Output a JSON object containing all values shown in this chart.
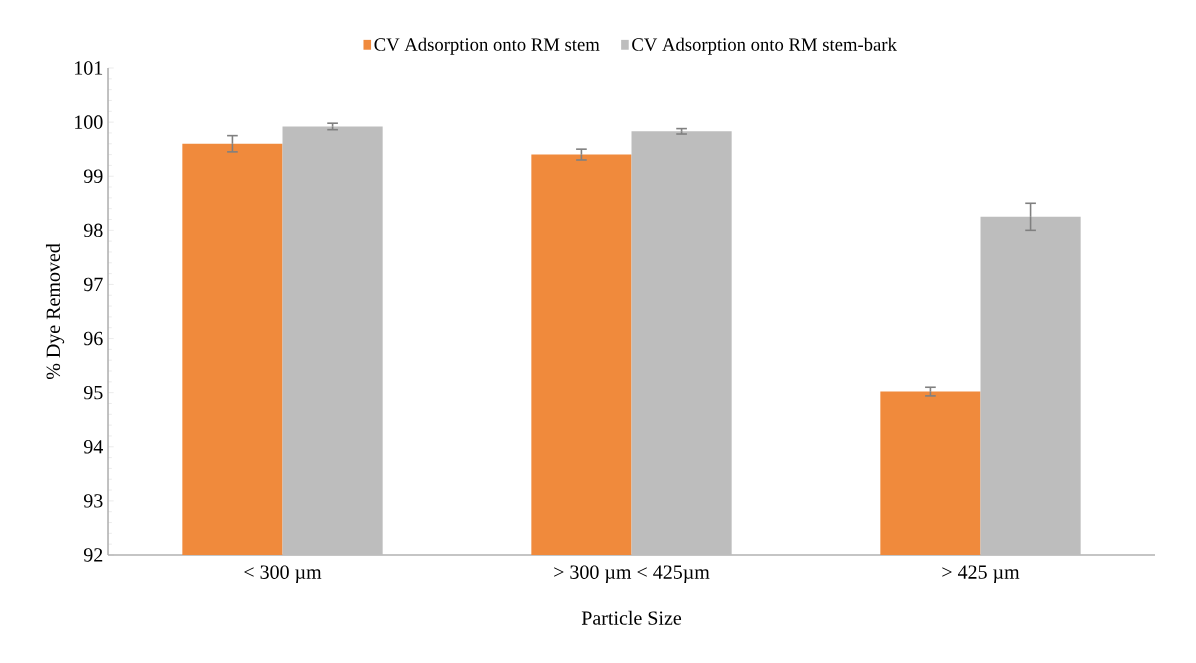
{
  "chart_data": {
    "type": "bar",
    "xlabel": "Particle Size",
    "ylabel": "% Dye Removed",
    "categories": [
      "< 300 µm",
      "> 300 µm < 425µm",
      "> 425 µm"
    ],
    "series": [
      {
        "name": "CV Adsorption onto RM stem",
        "color": "#f08a3c",
        "values": [
          99.6,
          99.4,
          95.02
        ],
        "errors": [
          0.15,
          0.1,
          0.08
        ]
      },
      {
        "name": "CV Adsorption onto RM stem-bark",
        "color": "#bdbdbd",
        "values": [
          99.92,
          99.83,
          98.25
        ],
        "errors": [
          0.06,
          0.05,
          0.25
        ]
      }
    ],
    "ylim": [
      92,
      101
    ],
    "yticks": [
      92,
      93,
      94,
      95,
      96,
      97,
      98,
      99,
      100,
      101
    ],
    "grid": false,
    "legend": "top"
  }
}
